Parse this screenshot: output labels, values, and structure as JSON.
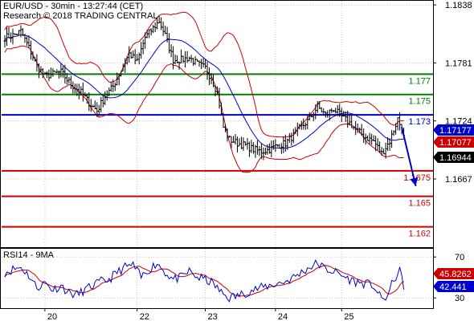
{
  "chart_data": {
    "type": "line",
    "header": {
      "line1": "EUR/USD - 30min - 13:27:44 (CET)",
      "line2": "Research © 2018 TRADING CENTRAL"
    },
    "price_axis": {
      "ylim": [
        1.16,
        1.1842
      ],
      "tick_labels": [
        {
          "value": 1.1838,
          "label": "1.1838"
        },
        {
          "value": 1.1781,
          "label": "1.1781"
        },
        {
          "value": 1.1724,
          "label": "1.1724"
        },
        {
          "value": 1.1667,
          "label": "1.1667"
        }
      ]
    },
    "x_axis": {
      "bar_count": 200,
      "day_labels": [
        {
          "bar": 20,
          "label": "20"
        },
        {
          "bar": 66,
          "label": "22"
        },
        {
          "bar": 100,
          "label": "23"
        },
        {
          "bar": 135,
          "label": "24"
        },
        {
          "bar": 168,
          "label": "25"
        }
      ]
    },
    "levels": [
      {
        "value": 1.177,
        "label": "1.177",
        "color": "#008000"
      },
      {
        "value": 1.175,
        "label": "1.175",
        "color": "#008000"
      },
      {
        "value": 1.173,
        "label": "1.173",
        "color": "#0000cc"
      },
      {
        "value": 1.1675,
        "label": "1.1675",
        "color": "#cc0000"
      },
      {
        "value": 1.165,
        "label": "1.165",
        "color": "#cc0000"
      },
      {
        "value": 1.162,
        "label": "1.162",
        "color": "#cc0000"
      }
    ],
    "price_badges": [
      {
        "value": 1.17177,
        "label": "1.17177",
        "bg": "#0000cc"
      },
      {
        "value": 1.17077,
        "label": "1.17077",
        "bg": "#cc0000"
      },
      {
        "value": 1.16944,
        "label": "1.16944",
        "bg": "#000000"
      }
    ],
    "price_anchors": [
      [
        0,
        1.1806
      ],
      [
        4,
        1.1808
      ],
      [
        8,
        1.1812
      ],
      [
        12,
        1.1796
      ],
      [
        16,
        1.1778
      ],
      [
        20,
        1.1768
      ],
      [
        24,
        1.177
      ],
      [
        28,
        1.1772
      ],
      [
        33,
        1.176
      ],
      [
        38,
        1.1752
      ],
      [
        42,
        1.1742
      ],
      [
        46,
        1.1734
      ],
      [
        50,
        1.1748
      ],
      [
        54,
        1.1758
      ],
      [
        58,
        1.1774
      ],
      [
        62,
        1.179
      ],
      [
        66,
        1.1782
      ],
      [
        70,
        1.1806
      ],
      [
        74,
        1.1815
      ],
      [
        77,
        1.1822
      ],
      [
        80,
        1.1808
      ],
      [
        84,
        1.1784
      ],
      [
        88,
        1.1784
      ],
      [
        92,
        1.1786
      ],
      [
        96,
        1.178
      ],
      [
        100,
        1.1776
      ],
      [
        103,
        1.1766
      ],
      [
        106,
        1.1752
      ],
      [
        109,
        1.1718
      ],
      [
        112,
        1.1706
      ],
      [
        116,
        1.1702
      ],
      [
        120,
        1.17
      ],
      [
        124,
        1.1696
      ],
      [
        128,
        1.1694
      ],
      [
        132,
        1.1696
      ],
      [
        136,
        1.17
      ],
      [
        140,
        1.1702
      ],
      [
        144,
        1.171
      ],
      [
        148,
        1.1718
      ],
      [
        152,
        1.1726
      ],
      [
        156,
        1.1738
      ],
      [
        160,
        1.173
      ],
      [
        164,
        1.1736
      ],
      [
        168,
        1.1728
      ],
      [
        172,
        1.1722
      ],
      [
        176,
        1.1714
      ],
      [
        180,
        1.1708
      ],
      [
        184,
        1.1704
      ],
      [
        188,
        1.1692
      ],
      [
        192,
        1.1704
      ],
      [
        196,
        1.1726
      ],
      [
        198,
        1.1716
      ],
      [
        199,
        1.1708
      ]
    ],
    "forecast_arrow": {
      "from": [
        198,
        1.1718
      ],
      "to": [
        205,
        1.166
      ],
      "color": "#0000cc"
    },
    "rsi": {
      "title": "RSI14 - 9MA",
      "ylim": [
        20,
        78
      ],
      "tick_labels": [
        {
          "value": 70,
          "label": "70"
        },
        {
          "value": 30,
          "label": "30"
        }
      ],
      "badges": [
        {
          "value": 45.8262,
          "label": "45.8262",
          "bg": "#cc0000"
        },
        {
          "value": 42.441,
          "label": "42.441",
          "bg": "#0000cc"
        }
      ],
      "anchors": [
        [
          0,
          55
        ],
        [
          4,
          58
        ],
        [
          8,
          60
        ],
        [
          12,
          52
        ],
        [
          16,
          40
        ],
        [
          20,
          45
        ],
        [
          24,
          38
        ],
        [
          28,
          42
        ],
        [
          32,
          35
        ],
        [
          36,
          33
        ],
        [
          40,
          38
        ],
        [
          44,
          42
        ],
        [
          48,
          46
        ],
        [
          52,
          48
        ],
        [
          56,
          55
        ],
        [
          60,
          60
        ],
        [
          64,
          62
        ],
        [
          68,
          50
        ],
        [
          72,
          58
        ],
        [
          76,
          64
        ],
        [
          80,
          55
        ],
        [
          84,
          48
        ],
        [
          88,
          50
        ],
        [
          92,
          56
        ],
        [
          96,
          50
        ],
        [
          100,
          48
        ],
        [
          104,
          44
        ],
        [
          108,
          35
        ],
        [
          112,
          30
        ],
        [
          116,
          32
        ],
        [
          120,
          35
        ],
        [
          124,
          38
        ],
        [
          128,
          40
        ],
        [
          132,
          42
        ],
        [
          136,
          44
        ],
        [
          140,
          46
        ],
        [
          144,
          50
        ],
        [
          148,
          55
        ],
        [
          152,
          60
        ],
        [
          156,
          64
        ],
        [
          160,
          58
        ],
        [
          164,
          56
        ],
        [
          168,
          52
        ],
        [
          172,
          48
        ],
        [
          176,
          45
        ],
        [
          180,
          44
        ],
        [
          184,
          42
        ],
        [
          188,
          28
        ],
        [
          191,
          32
        ],
        [
          194,
          48
        ],
        [
          197,
          56
        ],
        [
          199,
          42
        ]
      ]
    },
    "colors": {
      "price": "#000000",
      "bollinger": "#cc0000",
      "moving_average": "#0000cc",
      "rsi_line": "#0000cc",
      "rsi_ma": "#cc0000"
    }
  }
}
